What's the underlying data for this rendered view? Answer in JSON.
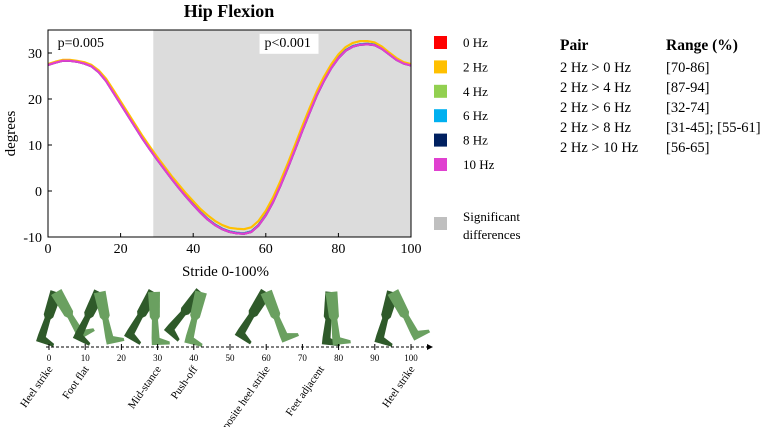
{
  "chart_data": {
    "type": "line",
    "title": "Hip Flexion",
    "xlabel": "Stride 0-100%",
    "ylabel": "degrees",
    "xlim": [
      0,
      100
    ],
    "ylim": [
      -10,
      35
    ],
    "xticks": [
      "0",
      "20",
      "40",
      "60",
      "80",
      "100"
    ],
    "yticks": [
      "-10",
      "0",
      "10",
      "20",
      "30"
    ],
    "x": [
      0,
      2,
      4,
      6,
      8,
      10,
      12,
      14,
      16,
      18,
      20,
      22,
      24,
      26,
      28,
      30,
      32,
      34,
      36,
      38,
      40,
      42,
      44,
      46,
      48,
      50,
      52,
      54,
      56,
      58,
      60,
      62,
      64,
      66,
      68,
      70,
      72,
      74,
      76,
      78,
      80,
      82,
      84,
      86,
      88,
      90,
      92,
      94,
      96,
      98,
      100
    ],
    "series": [
      {
        "name": "0 Hz",
        "color": "#ff0000",
        "values": [
          27.5,
          28.0,
          28.4,
          28.4,
          28.2,
          27.8,
          27.2,
          25.9,
          24.0,
          21.5,
          19.0,
          16.5,
          14.0,
          11.5,
          9.2,
          7.0,
          4.9,
          2.8,
          0.8,
          -1.1,
          -2.9,
          -4.6,
          -6.1,
          -7.3,
          -8.2,
          -8.8,
          -9.1,
          -9.2,
          -8.8,
          -7.4,
          -5.2,
          -2.3,
          1.2,
          5.0,
          9.0,
          13.1,
          17.0,
          20.8,
          24.0,
          26.8,
          29.0,
          30.6,
          31.5,
          31.9,
          32.0,
          31.8,
          31.0,
          29.8,
          28.6,
          27.8,
          27.4
        ]
      },
      {
        "name": "2 Hz",
        "color": "#ffc000",
        "values": [
          27.6,
          28.1,
          28.5,
          28.5,
          28.3,
          28.0,
          27.4,
          26.2,
          24.4,
          22.0,
          19.5,
          17.0,
          14.5,
          12.0,
          9.7,
          7.5,
          5.4,
          3.3,
          1.4,
          -0.5,
          -2.2,
          -3.9,
          -5.3,
          -6.5,
          -7.4,
          -8.0,
          -8.2,
          -8.3,
          -7.9,
          -6.5,
          -4.3,
          -1.4,
          2.1,
          5.9,
          9.9,
          14.0,
          17.9,
          21.6,
          24.8,
          27.5,
          29.7,
          31.3,
          32.2,
          32.6,
          32.6,
          32.3,
          31.4,
          30.1,
          28.9,
          28.0,
          27.6
        ]
      },
      {
        "name": "4 Hz",
        "color": "#92d050",
        "values": [
          27.5,
          28.0,
          28.4,
          28.4,
          28.2,
          27.8,
          27.2,
          25.9,
          24.0,
          21.5,
          19.0,
          16.5,
          14.0,
          11.5,
          9.2,
          7.0,
          4.9,
          2.8,
          0.8,
          -1.1,
          -2.9,
          -4.6,
          -6.1,
          -7.3,
          -8.2,
          -8.8,
          -9.1,
          -9.2,
          -8.8,
          -7.4,
          -5.2,
          -2.3,
          1.2,
          5.0,
          9.0,
          13.1,
          17.0,
          20.8,
          24.0,
          26.8,
          29.0,
          30.6,
          31.5,
          31.9,
          32.0,
          31.8,
          31.0,
          29.8,
          28.6,
          27.8,
          27.4
        ]
      },
      {
        "name": "6 Hz",
        "color": "#00b0f0",
        "values": [
          27.5,
          28.0,
          28.4,
          28.4,
          28.2,
          27.8,
          27.2,
          25.9,
          24.0,
          21.5,
          19.0,
          16.5,
          14.0,
          11.5,
          9.2,
          7.0,
          4.9,
          2.8,
          0.8,
          -1.1,
          -2.9,
          -4.6,
          -6.1,
          -7.3,
          -8.2,
          -8.8,
          -9.1,
          -9.2,
          -8.8,
          -7.4,
          -5.2,
          -2.3,
          1.2,
          5.0,
          9.0,
          13.1,
          17.0,
          20.8,
          24.0,
          26.8,
          29.0,
          30.6,
          31.5,
          31.9,
          32.0,
          31.8,
          31.0,
          29.8,
          28.6,
          27.8,
          27.4
        ]
      },
      {
        "name": "8 Hz",
        "color": "#002060",
        "values": [
          27.4,
          27.9,
          28.3,
          28.3,
          28.1,
          27.7,
          27.1,
          25.8,
          23.9,
          21.4,
          18.9,
          16.4,
          13.9,
          11.4,
          9.1,
          6.9,
          4.8,
          2.7,
          0.7,
          -1.2,
          -3.0,
          -4.7,
          -6.2,
          -7.4,
          -8.3,
          -8.9,
          -9.2,
          -9.3,
          -8.9,
          -7.5,
          -5.3,
          -2.4,
          1.1,
          4.9,
          8.9,
          13.0,
          16.9,
          20.7,
          23.9,
          26.7,
          28.9,
          30.5,
          31.4,
          31.8,
          31.9,
          31.7,
          30.9,
          29.7,
          28.5,
          27.7,
          27.3
        ]
      },
      {
        "name": "10 Hz",
        "color": "#e040d0",
        "values": [
          27.4,
          27.9,
          28.3,
          28.3,
          28.1,
          27.7,
          27.1,
          25.8,
          23.9,
          21.4,
          18.9,
          16.4,
          13.9,
          11.4,
          9.1,
          6.9,
          4.8,
          2.7,
          0.7,
          -1.2,
          -3.0,
          -4.7,
          -6.2,
          -7.4,
          -8.3,
          -8.9,
          -9.2,
          -9.3,
          -8.9,
          -7.5,
          -5.3,
          -2.4,
          1.1,
          4.9,
          8.9,
          13.0,
          16.9,
          20.7,
          23.9,
          26.7,
          28.9,
          30.5,
          31.4,
          31.8,
          31.9,
          31.7,
          30.9,
          29.7,
          28.5,
          27.7,
          27.3
        ]
      }
    ],
    "significant_region": {
      "x_start": 29,
      "x_end": 100,
      "color": "#dcdcdc"
    },
    "annotations": [
      {
        "text": "p=0.005",
        "x": 1,
        "y": 32
      },
      {
        "text": "p<0.001",
        "x": 58,
        "y": 32
      }
    ],
    "legend": {
      "placement": "right",
      "significant_label_line1": "Significant",
      "significant_label_line2": "differences",
      "significant_color": "#bfbfbf"
    },
    "grid": false
  },
  "significance_table": {
    "header_pair": "Pair",
    "header_range": "Range (%)",
    "rows": [
      {
        "pair": "2 Hz > 0 Hz",
        "range": "[70-86]"
      },
      {
        "pair": "2 Hz > 4 Hz",
        "range": "[87-94]"
      },
      {
        "pair": "2 Hz > 6 Hz",
        "range": "[32-74]"
      },
      {
        "pair": "2 Hz > 8 Hz",
        "range": "[31-45]; [55-61]"
      },
      {
        "pair": "2 Hz > 10 Hz",
        "range": "[56-65]"
      }
    ]
  },
  "gait_cycle": {
    "leg_color": "#6aa060",
    "leg_dark_color": "#2f5a2a",
    "ticks": [
      "0",
      "10",
      "20",
      "30",
      "40",
      "50",
      "60",
      "70",
      "80",
      "90",
      "100"
    ],
    "phases": [
      {
        "label": "Heel strike",
        "at": 0
      },
      {
        "label": "Foot flat",
        "at": 10
      },
      {
        "label": "Mid-stance",
        "at": 30
      },
      {
        "label": "Push-off",
        "at": 40
      },
      {
        "label": "Opposite heel strike",
        "at": 60
      },
      {
        "label": "Feet adjacent",
        "at": 75
      },
      {
        "label": "Heel strike",
        "at": 100
      }
    ]
  }
}
